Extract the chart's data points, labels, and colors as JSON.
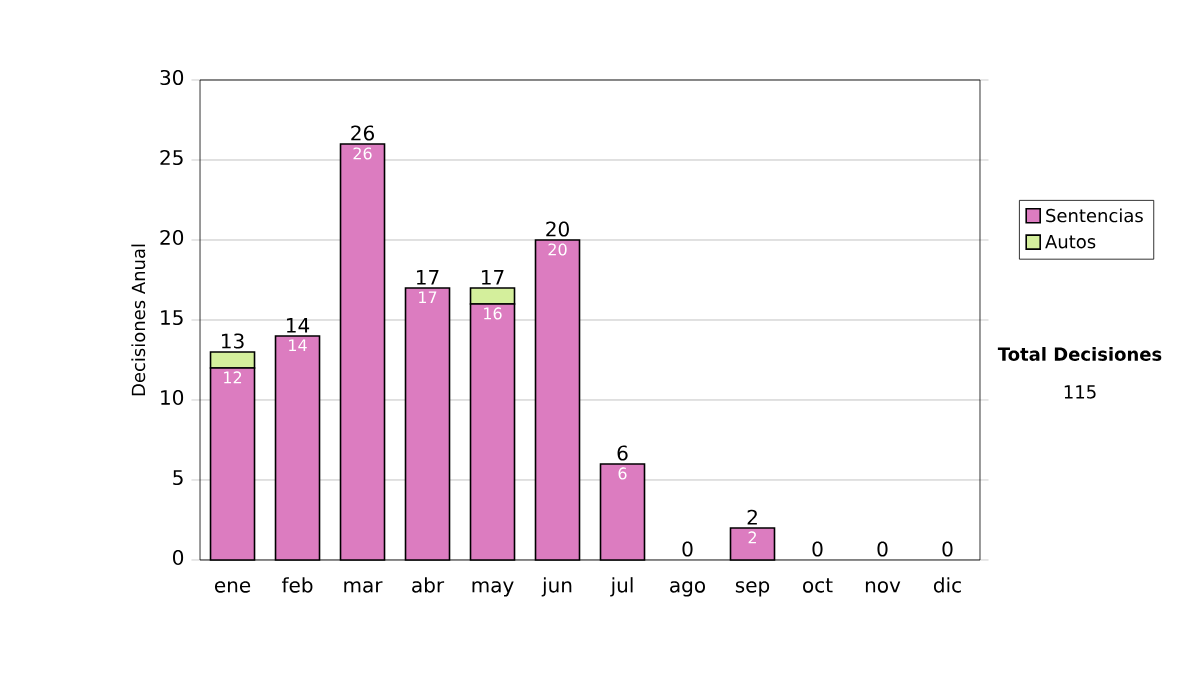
{
  "chart_data": {
    "type": "bar",
    "stacked": true,
    "ylabel": "Decisiones Anual",
    "categories": [
      "ene",
      "feb",
      "mar",
      "abr",
      "may",
      "jun",
      "jul",
      "ago",
      "sep",
      "oct",
      "nov",
      "dic"
    ],
    "series": [
      {
        "name": "Sentencias",
        "color": "#dc7cc0",
        "values": [
          12,
          14,
          26,
          17,
          16,
          20,
          6,
          0,
          2,
          0,
          0,
          0
        ],
        "value_labels": [
          "12",
          "14",
          "26",
          "17",
          "16",
          "20",
          "6",
          null,
          "2",
          null,
          null,
          null
        ]
      },
      {
        "name": "Autos",
        "color": "#d4ef9c",
        "values": [
          1,
          0,
          0,
          0,
          1,
          0,
          0,
          0,
          0,
          0,
          0,
          0
        ]
      }
    ],
    "totals": [
      "13",
      "14",
      "26",
      "17",
      "17",
      "20",
      "6",
      "0",
      "2",
      "0",
      "0",
      "0"
    ],
    "ylim": [
      0,
      30
    ],
    "yticks": [
      0,
      5,
      10,
      15,
      20,
      25,
      30
    ],
    "grid": "y",
    "legend": "right",
    "annotations": [
      "Total Decisiones",
      "115"
    ]
  }
}
